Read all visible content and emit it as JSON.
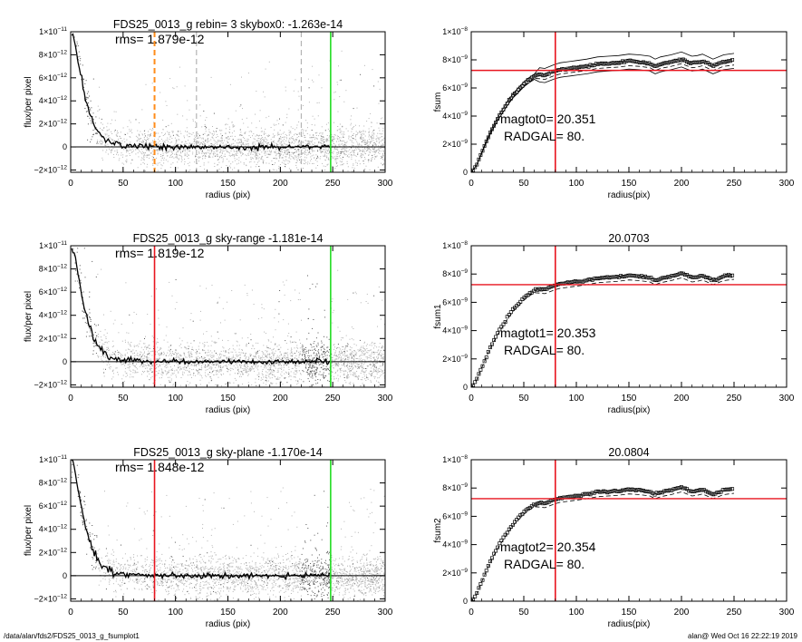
{
  "colors": {
    "axis": "#000000",
    "profile": "#000000",
    "scatter_light": "#b4b4b4",
    "scatter_dark": "#555555",
    "sky_inner_dashed": "#ff8c1a",
    "sky_inner": "#e8151f",
    "sky_outer": "#22dd22",
    "radgal": "#e8151f",
    "level": "#e8151f"
  },
  "footer": {
    "path": "/data/alan/fds2/FDS25_0013_g_fsumplot1",
    "stamp": "alan@  Wed Oct 16 22:22:19 2019"
  },
  "chart_data": [
    {
      "type": "scatter",
      "title": "FDS25_0013_g rebin= 3    skybox0: -1.263e-14",
      "annotation": "rms= 1.879e-12",
      "xlabel": "radius (pix)",
      "ylabel": "flux/per pixel",
      "xlim": [
        0,
        300
      ],
      "ylim": [
        -2.2e-12,
        1e-11
      ],
      "xticks": [
        0,
        50,
        100,
        150,
        200,
        250,
        300
      ],
      "xtick_labels": [
        "0",
        "50",
        "100",
        "150",
        "200",
        "250",
        "300"
      ],
      "yticks": [
        -2e-12,
        0,
        2e-12,
        4e-12,
        6e-12,
        8e-12,
        1e-11
      ],
      "ytick_labels": [
        {
          "m": "−2×10",
          "e": "−12"
        },
        {
          "m": "0",
          "e": ""
        },
        {
          "m": "2×10",
          "e": "−12"
        },
        {
          "m": "4×10",
          "e": "−12"
        },
        {
          "m": "6×10",
          "e": "−12"
        },
        {
          "m": "8×10",
          "e": "−12"
        },
        {
          "m": "1×10",
          "e": "−11"
        }
      ],
      "vlines": [
        {
          "x": 80,
          "style": "dashed",
          "color": "sky_inner_dashed"
        },
        {
          "x": 120,
          "style": "dashed",
          "color": "scatter_light"
        },
        {
          "x": 220,
          "style": "dashed",
          "color": "scatter_light"
        },
        {
          "x": 248,
          "style": "solid",
          "color": "sky_outer"
        }
      ],
      "profile": {
        "r": [
          2,
          4,
          6,
          8,
          10,
          12,
          14,
          16,
          18,
          20,
          22,
          25,
          28,
          31,
          35,
          40,
          45,
          50,
          60,
          70,
          80,
          100,
          120,
          150,
          200,
          250
        ],
        "flux": [
          9.8e-12,
          9e-12,
          8e-12,
          7e-12,
          6e-12,
          5.1e-12,
          4.3e-12,
          3.6e-12,
          3e-12,
          2.5e-12,
          2e-12,
          1.5e-12,
          1.1e-12,
          8e-13,
          5.5e-13,
          3.5e-13,
          2.5e-13,
          1.8e-13,
          1e-13,
          6e-14,
          3e-14,
          1e-14,
          0,
          0,
          0,
          0
        ]
      },
      "zero_line": 0
    },
    {
      "type": "line",
      "title": "",
      "annotation_lines": [
        "magtot0=  20.351",
        "RADGAL=     80."
      ],
      "xlabel": "radius(pix)",
      "ylabel": "fsum",
      "xlim": [
        0,
        300
      ],
      "ylim": [
        0,
        1e-08
      ],
      "xticks": [
        0,
        50,
        100,
        150,
        200,
        250,
        300
      ],
      "xtick_labels": [
        "0",
        "50",
        "100",
        "150",
        "200",
        "250",
        "300"
      ],
      "yticks": [
        0,
        2e-09,
        4e-09,
        6e-09,
        8e-09,
        1e-08
      ],
      "ytick_labels": [
        {
          "m": "0",
          "e": ""
        },
        {
          "m": "2×10",
          "e": "−9"
        },
        {
          "m": "4×10",
          "e": "−9"
        },
        {
          "m": "6×10",
          "e": "−9"
        },
        {
          "m": "8×10",
          "e": "−9"
        },
        {
          "m": "1×10",
          "e": "−8"
        }
      ],
      "vline_x": 80,
      "hline_y": 7.25e-09,
      "envelope": true,
      "series": [
        {
          "r": [
            0,
            5,
            10,
            15,
            20,
            25,
            30,
            35,
            40,
            45,
            50,
            55,
            60,
            65,
            70,
            75,
            80,
            85,
            90,
            95,
            100,
            110,
            120,
            130,
            140,
            150,
            160,
            170,
            175,
            180,
            190,
            200,
            210,
            215,
            220,
            230,
            240,
            250
          ],
          "fsum": [
            0,
            5e-10,
            1.4e-09,
            2.3e-09,
            3.1e-09,
            3.8e-09,
            4.4e-09,
            5e-09,
            5.5e-09,
            5.9e-09,
            6.3e-09,
            6.6e-09,
            6.85e-09,
            6.95e-09,
            6.9e-09,
            7.05e-09,
            7.2e-09,
            7.3e-09,
            7.35e-09,
            7.4e-09,
            7.45e-09,
            7.55e-09,
            7.7e-09,
            7.75e-09,
            7.8e-09,
            7.9e-09,
            7.85e-09,
            7.75e-09,
            7.55e-09,
            7.7e-09,
            7.85e-09,
            8.05e-09,
            7.75e-09,
            7.8e-09,
            7.9e-09,
            7.55e-09,
            7.85e-09,
            7.95e-09
          ]
        }
      ]
    },
    {
      "type": "scatter",
      "title": "FDS25_0013_g sky-range -1.181e-14",
      "annotation": "rms= 1.819e-12",
      "xlabel": "radius (pix)",
      "ylabel": "flux/per pixel",
      "xlim": [
        0,
        300
      ],
      "ylim": [
        -2.2e-12,
        1e-11
      ],
      "xticks": [
        0,
        50,
        100,
        150,
        200,
        250,
        300
      ],
      "xtick_labels": [
        "0",
        "50",
        "100",
        "150",
        "200",
        "250",
        "300"
      ],
      "yticks": [
        -2e-12,
        0,
        2e-12,
        4e-12,
        6e-12,
        8e-12,
        1e-11
      ],
      "ytick_labels": [
        {
          "m": "−2×10",
          "e": "−12"
        },
        {
          "m": "0",
          "e": ""
        },
        {
          "m": "2×10",
          "e": "−12"
        },
        {
          "m": "4×10",
          "e": "−12"
        },
        {
          "m": "6×10",
          "e": "−12"
        },
        {
          "m": "8×10",
          "e": "−12"
        },
        {
          "m": "1×10",
          "e": "−11"
        }
      ],
      "vlines": [
        {
          "x": 80,
          "style": "solid",
          "color": "sky_inner"
        },
        {
          "x": 248,
          "style": "solid",
          "color": "sky_outer"
        }
      ],
      "dark_band": [
        220,
        248
      ],
      "profile": {
        "r": [
          2,
          4,
          6,
          8,
          10,
          12,
          14,
          16,
          18,
          20,
          22,
          25,
          28,
          31,
          35,
          40,
          45,
          50,
          60,
          70,
          80,
          100,
          120,
          150,
          200,
          250
        ],
        "flux": [
          9.8e-12,
          9e-12,
          8e-12,
          7e-12,
          6e-12,
          5.1e-12,
          4.3e-12,
          3.6e-12,
          3e-12,
          2.5e-12,
          2e-12,
          1.5e-12,
          1.1e-12,
          8e-13,
          5.5e-13,
          3.5e-13,
          2.5e-13,
          1.8e-13,
          1e-13,
          6e-14,
          3e-14,
          1e-14,
          0,
          0,
          0,
          0
        ]
      },
      "zero_line": 0
    },
    {
      "type": "line",
      "title": "20.0703",
      "annotation_lines": [
        "magtot1=  20.353",
        "RADGAL=     80."
      ],
      "xlabel": "radius(pix)",
      "ylabel": "fsum1",
      "xlim": [
        0,
        300
      ],
      "ylim": [
        0,
        1e-08
      ],
      "xticks": [
        0,
        50,
        100,
        150,
        200,
        250,
        300
      ],
      "xtick_labels": [
        "0",
        "50",
        "100",
        "150",
        "200",
        "250",
        "300"
      ],
      "yticks": [
        0,
        2e-09,
        4e-09,
        6e-09,
        8e-09,
        1e-08
      ],
      "ytick_labels": [
        {
          "m": "0",
          "e": ""
        },
        {
          "m": "2×10",
          "e": "−9"
        },
        {
          "m": "4×10",
          "e": "−9"
        },
        {
          "m": "6×10",
          "e": "−9"
        },
        {
          "m": "8×10",
          "e": "−9"
        },
        {
          "m": "1×10",
          "e": "−8"
        }
      ],
      "vline_x": 80,
      "hline_y": 7.25e-09,
      "envelope": false,
      "series": [
        {
          "r": [
            0,
            5,
            10,
            15,
            20,
            25,
            30,
            35,
            40,
            45,
            50,
            55,
            60,
            65,
            70,
            75,
            80,
            85,
            90,
            95,
            100,
            110,
            120,
            130,
            140,
            150,
            160,
            170,
            175,
            180,
            190,
            200,
            210,
            215,
            220,
            230,
            240,
            250
          ],
          "fsum": [
            0,
            5e-10,
            1.4e-09,
            2.3e-09,
            3.1e-09,
            3.8e-09,
            4.4e-09,
            5e-09,
            5.5e-09,
            5.9e-09,
            6.3e-09,
            6.6e-09,
            6.85e-09,
            6.95e-09,
            6.9e-09,
            7.05e-09,
            7.2e-09,
            7.3e-09,
            7.35e-09,
            7.4e-09,
            7.45e-09,
            7.55e-09,
            7.7e-09,
            7.75e-09,
            7.8e-09,
            7.9e-09,
            7.85e-09,
            7.75e-09,
            7.55e-09,
            7.7e-09,
            7.85e-09,
            8.05e-09,
            7.75e-09,
            7.8e-09,
            7.9e-09,
            7.55e-09,
            7.85e-09,
            7.95e-09
          ]
        }
      ]
    },
    {
      "type": "scatter",
      "title": "FDS25_0013_g sky-plane -1.170e-14",
      "annotation": "rms= 1.848e-12",
      "xlabel": "radius (pix)",
      "ylabel": "flux/per pixel",
      "xlim": [
        0,
        300
      ],
      "ylim": [
        -2.2e-12,
        1e-11
      ],
      "xticks": [
        0,
        50,
        100,
        150,
        200,
        250,
        300
      ],
      "xtick_labels": [
        "0",
        "50",
        "100",
        "150",
        "200",
        "250",
        "300"
      ],
      "yticks": [
        -2e-12,
        0,
        2e-12,
        4e-12,
        6e-12,
        8e-12,
        1e-11
      ],
      "ytick_labels": [
        {
          "m": "−2×10",
          "e": "−12"
        },
        {
          "m": "0",
          "e": ""
        },
        {
          "m": "2×10",
          "e": "−12"
        },
        {
          "m": "4×10",
          "e": "−12"
        },
        {
          "m": "6×10",
          "e": "−12"
        },
        {
          "m": "8×10",
          "e": "−12"
        },
        {
          "m": "1×10",
          "e": "−11"
        }
      ],
      "vlines": [
        {
          "x": 80,
          "style": "solid",
          "color": "sky_inner"
        },
        {
          "x": 248,
          "style": "solid",
          "color": "sky_outer"
        }
      ],
      "dark_band": [
        220,
        248
      ],
      "profile": {
        "r": [
          2,
          4,
          6,
          8,
          10,
          12,
          14,
          16,
          18,
          20,
          22,
          25,
          28,
          31,
          35,
          40,
          45,
          50,
          60,
          70,
          80,
          100,
          120,
          150,
          200,
          250
        ],
        "flux": [
          9.8e-12,
          9e-12,
          8e-12,
          7e-12,
          6e-12,
          5.1e-12,
          4.3e-12,
          3.6e-12,
          3e-12,
          2.5e-12,
          2e-12,
          1.5e-12,
          1.1e-12,
          8e-13,
          5.5e-13,
          3.5e-13,
          2.5e-13,
          1.8e-13,
          1e-13,
          6e-14,
          3e-14,
          1e-14,
          0,
          0,
          0,
          0
        ]
      },
      "zero_line": 0
    },
    {
      "type": "line",
      "title": "20.0804",
      "annotation_lines": [
        "magtot2=  20.354",
        "RADGAL=     80."
      ],
      "xlabel": "radius(pix)",
      "ylabel": "fsum2",
      "xlim": [
        0,
        300
      ],
      "ylim": [
        0,
        1e-08
      ],
      "xticks": [
        0,
        50,
        100,
        150,
        200,
        250,
        300
      ],
      "xtick_labels": [
        "0",
        "50",
        "100",
        "150",
        "200",
        "250",
        "300"
      ],
      "yticks": [
        0,
        2e-09,
        4e-09,
        6e-09,
        8e-09,
        1e-08
      ],
      "ytick_labels": [
        {
          "m": "0",
          "e": ""
        },
        {
          "m": "2×10",
          "e": "−9"
        },
        {
          "m": "4×10",
          "e": "−9"
        },
        {
          "m": "6×10",
          "e": "−9"
        },
        {
          "m": "8×10",
          "e": "−9"
        },
        {
          "m": "1×10",
          "e": "−8"
        }
      ],
      "vline_x": 80,
      "hline_y": 7.25e-09,
      "envelope": false,
      "series": [
        {
          "r": [
            0,
            5,
            10,
            15,
            20,
            25,
            30,
            35,
            40,
            45,
            50,
            55,
            60,
            65,
            70,
            75,
            80,
            85,
            90,
            95,
            100,
            110,
            120,
            130,
            140,
            150,
            160,
            170,
            175,
            180,
            190,
            200,
            210,
            215,
            220,
            230,
            240,
            250
          ],
          "fsum": [
            0,
            5e-10,
            1.4e-09,
            2.3e-09,
            3.1e-09,
            3.8e-09,
            4.4e-09,
            5e-09,
            5.5e-09,
            5.9e-09,
            6.3e-09,
            6.6e-09,
            6.85e-09,
            6.95e-09,
            6.9e-09,
            7.05e-09,
            7.2e-09,
            7.3e-09,
            7.35e-09,
            7.4e-09,
            7.45e-09,
            7.55e-09,
            7.7e-09,
            7.75e-09,
            7.8e-09,
            7.9e-09,
            7.85e-09,
            7.75e-09,
            7.55e-09,
            7.7e-09,
            7.85e-09,
            8.05e-09,
            7.75e-09,
            7.8e-09,
            7.9e-09,
            7.55e-09,
            7.85e-09,
            7.95e-09
          ]
        }
      ]
    }
  ]
}
